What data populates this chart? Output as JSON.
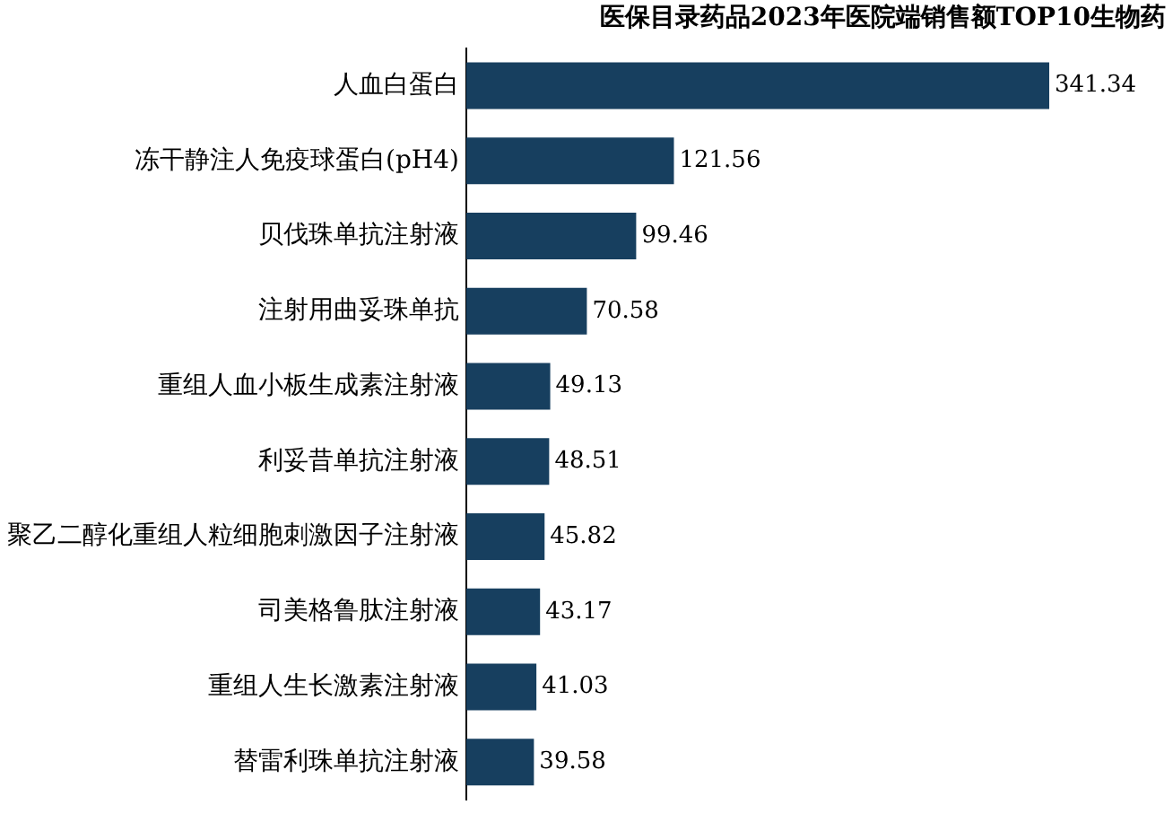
{
  "chart_data": {
    "type": "bar",
    "orientation": "horizontal",
    "title": "医保目录药品2023年医院端销售额TOP10生物药",
    "categories": [
      "人血白蛋白",
      "冻干静注人免疫球蛋白(pH4)",
      "贝伐珠单抗注射液",
      "注射用曲妥珠单抗",
      "重组人血小板生成素注射液",
      "利妥昔单抗注射液",
      "聚乙二醇化重组人粒细胞刺激因子注射液",
      "司美格鲁肽注射液",
      "重组人生长激素注射液",
      "替雷利珠单抗注射液"
    ],
    "values": [
      341.34,
      121.56,
      99.46,
      70.58,
      49.13,
      48.51,
      45.82,
      43.17,
      41.03,
      39.58
    ],
    "color": "#173f5f",
    "data_labels": true,
    "legend": false,
    "tick_labels": "y"
  }
}
